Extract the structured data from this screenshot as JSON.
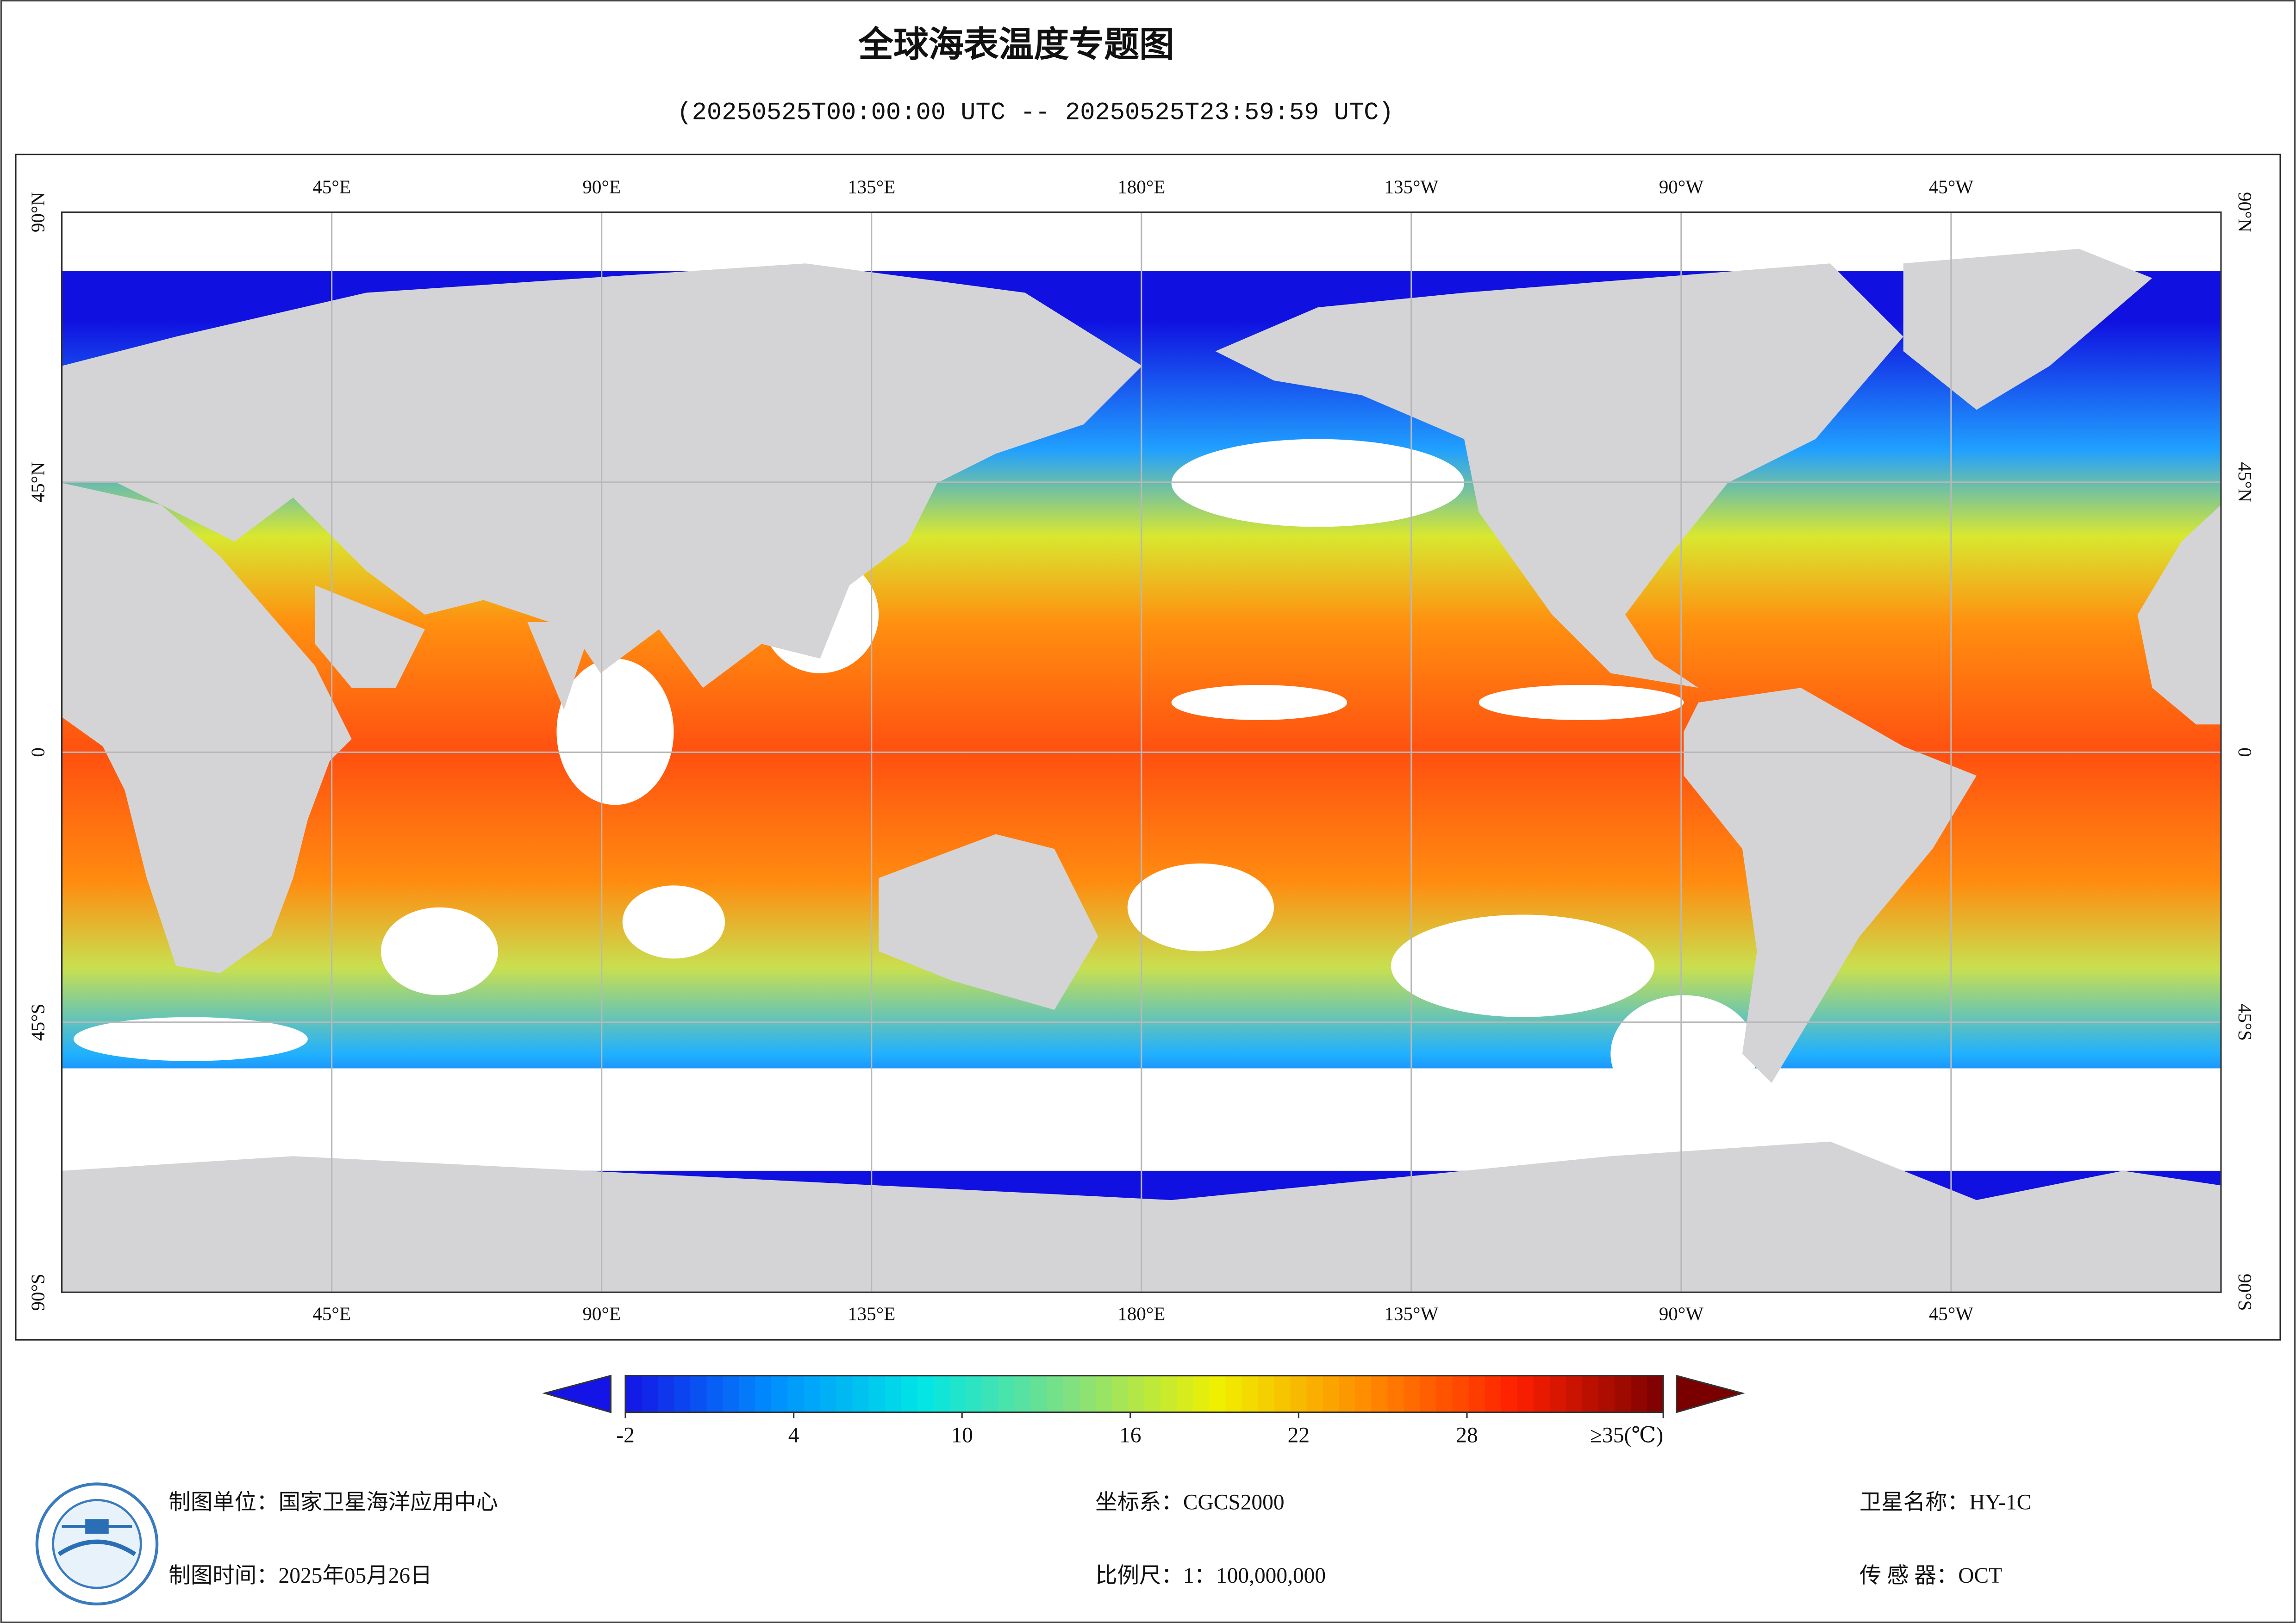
{
  "title": "全球海表温度专题图",
  "subtitle": "(20250525T00:00:00 UTC -- 20250525T23:59:59 UTC)",
  "map": {
    "lonlim": [
      0,
      360
    ],
    "latlim": [
      -90,
      90
    ],
    "lonticks": [
      {
        "value": 45,
        "label": "45°E"
      },
      {
        "value": 90,
        "label": "90°E"
      },
      {
        "value": 135,
        "label": "135°E"
      },
      {
        "value": 180,
        "label": "180°E"
      },
      {
        "value": -135,
        "label": "135°W"
      },
      {
        "value": -90,
        "label": "90°W"
      },
      {
        "value": -45,
        "label": "45°W"
      }
    ],
    "latticks": [
      {
        "value": 90,
        "label": "90°N"
      },
      {
        "value": 45,
        "label": "45°N"
      },
      0,
      {
        "value": -45,
        "label": "45°S"
      },
      {
        "value": -90,
        "label": "90°S"
      }
    ],
    "grid": true
  },
  "colorbar": {
    "clim": [
      -2,
      35
    ],
    "ticks": [
      -2,
      4,
      10,
      16,
      22,
      28,
      {
        "value": 35,
        "label": "≥35(℃)"
      }
    ],
    "colors": [
      "#1414e6",
      "#0090ff",
      "#00e6e6",
      "#80e080",
      "#f0f000",
      "#ff8c00",
      "#ff2000",
      "#7a0000"
    ]
  },
  "footer": {
    "unit": "制图单位：国家卫星海洋应用中心",
    "date": "制图时间：2025年05月26日",
    "crs": "坐标系：CGCS2000",
    "scale": "比例尺：1：100,000,000",
    "satellite": "卫星名称：HY-1C",
    "sensor": "传 感 器：OCT"
  }
}
